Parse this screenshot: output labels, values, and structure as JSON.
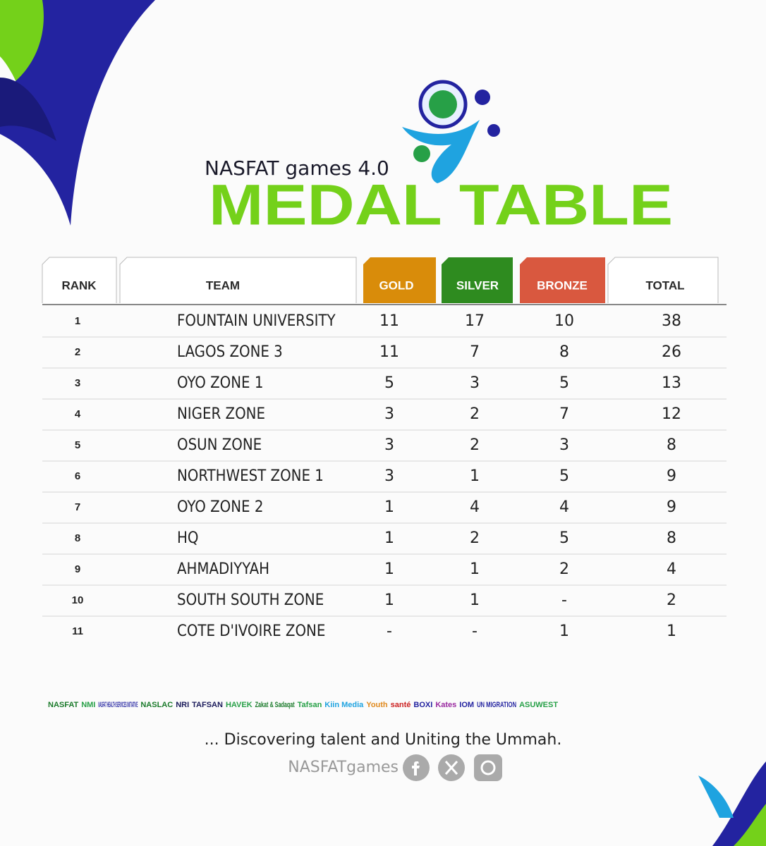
{
  "header": {
    "subtitle": "NASFAT games 4.0",
    "title": "MEDAL TABLE"
  },
  "table": {
    "columns": [
      "RANK",
      "TEAM",
      "GOLD",
      "SILVER",
      "BRONZE",
      "TOTAL"
    ],
    "rows": [
      [
        1,
        "FOUNTAIN UNIVERSITY",
        11,
        17,
        10,
        38
      ],
      [
        2,
        "LAGOS ZONE 3",
        11,
        7,
        8,
        26
      ],
      [
        3,
        "OYO ZONE 1",
        5,
        3,
        5,
        13
      ],
      [
        4,
        "NIGER ZONE",
        3,
        2,
        7,
        12
      ],
      [
        5,
        "OSUN ZONE",
        3,
        2,
        3,
        8
      ],
      [
        6,
        "NORTHWEST ZONE 1",
        3,
        1,
        5,
        9
      ],
      [
        7,
        "OYO ZONE 2",
        1,
        4,
        4,
        9
      ],
      [
        8,
        "HQ",
        1,
        2,
        5,
        8
      ],
      [
        9,
        "AHMADIYYAH",
        1,
        1,
        2,
        4
      ],
      [
        10,
        "SOUTH SOUTH ZONE",
        1,
        1,
        "-",
        2
      ],
      [
        11,
        "COTE D'IVOIRE ZONE",
        "-",
        "-",
        1,
        1
      ]
    ]
  },
  "sponsors": [
    "NASFAT",
    "NMI",
    "NASFAT HEALTH SERVICES INITIATIVE",
    "NASLAC",
    "NRI",
    "TAFSAN",
    "HAVEK",
    "Zakat & Sadaqat",
    "Tafsan",
    "Kiin Media",
    "Youth",
    "santé",
    "BOXI",
    "Kates",
    "IOM",
    "UN MIGRATION",
    "ASUWEST"
  ],
  "footer": {
    "tagline": "... Discovering talent and Uniting the Ummah.",
    "handle": "NASFATgames"
  }
}
